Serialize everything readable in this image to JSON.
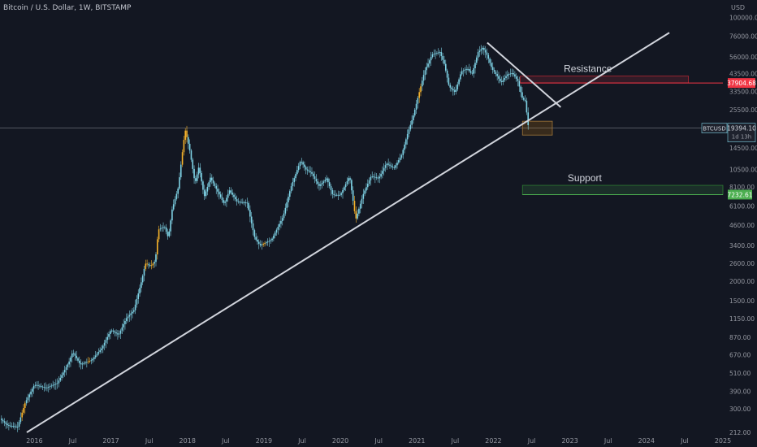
{
  "chart_data": {
    "type": "candlestick",
    "title": "Bitcoin / U.S. Dollar, 1W, BITSTAMP",
    "y_unit": "USD",
    "log_scale": true,
    "grid": false,
    "ylim": [
      212,
      130000
    ],
    "y_ticks": [
      "100000.00",
      "76000.00",
      "56000.00",
      "43500.00",
      "33500.00",
      "25500.00",
      "14500.00",
      "10500.00",
      "8100.00",
      "6100.00",
      "4600.00",
      "3400.00",
      "2600.00",
      "2000.00",
      "1500.00",
      "1150.00",
      "870.00",
      "670.00",
      "510.00",
      "390.00",
      "300.00",
      "212.00"
    ],
    "y_tick_values": [
      100000,
      76000,
      56000,
      43500,
      33500,
      25500,
      14500,
      10500,
      8100,
      6100,
      4600,
      3400,
      2600,
      2000,
      1500,
      1150,
      870,
      670,
      510,
      390,
      300,
      212
    ],
    "x_ticks": [
      "2016",
      "Jul",
      "2017",
      "Jul",
      "2018",
      "Jul",
      "2019",
      "Jul",
      "2020",
      "Jul",
      "2021",
      "Jul",
      "2022",
      "Jul",
      "2023",
      "Jul",
      "2024",
      "Jul",
      "2025"
    ],
    "x_tick_dates": [
      2016.0,
      2016.5,
      2017.0,
      2017.5,
      2018.0,
      2018.5,
      2019.0,
      2019.5,
      2020.0,
      2020.5,
      2021.0,
      2021.5,
      2022.0,
      2022.5,
      2023.0,
      2023.5,
      2024.0,
      2024.5,
      2025.0
    ],
    "xlim": [
      2015.55,
      2025.0
    ],
    "price_path": [
      [
        2015.55,
        260
      ],
      [
        2015.65,
        235
      ],
      [
        2015.78,
        230
      ],
      [
        2015.88,
        330
      ],
      [
        2016.0,
        430
      ],
      [
        2016.15,
        410
      ],
      [
        2016.3,
        440
      ],
      [
        2016.45,
        600
      ],
      [
        2016.5,
        700
      ],
      [
        2016.6,
        580
      ],
      [
        2016.75,
        620
      ],
      [
        2016.88,
        740
      ],
      [
        2017.0,
        970
      ],
      [
        2017.1,
        900
      ],
      [
        2017.2,
        1150
      ],
      [
        2017.3,
        1300
      ],
      [
        2017.4,
        2000
      ],
      [
        2017.45,
        2600
      ],
      [
        2017.52,
        2500
      ],
      [
        2017.58,
        2700
      ],
      [
        2017.62,
        4300
      ],
      [
        2017.7,
        4500
      ],
      [
        2017.75,
        3800
      ],
      [
        2017.8,
        5800
      ],
      [
        2017.88,
        8000
      ],
      [
        2017.93,
        13000
      ],
      [
        2017.97,
        19000
      ],
      [
        2018.03,
        14000
      ],
      [
        2018.1,
        8500
      ],
      [
        2018.15,
        11000
      ],
      [
        2018.22,
        7000
      ],
      [
        2018.3,
        9300
      ],
      [
        2018.4,
        7500
      ],
      [
        2018.48,
        6300
      ],
      [
        2018.55,
        7700
      ],
      [
        2018.65,
        6500
      ],
      [
        2018.78,
        6400
      ],
      [
        2018.88,
        3800
      ],
      [
        2018.95,
        3400
      ],
      [
        2019.1,
        3700
      ],
      [
        2019.25,
        5200
      ],
      [
        2019.35,
        8000
      ],
      [
        2019.48,
        12000
      ],
      [
        2019.55,
        10500
      ],
      [
        2019.62,
        10000
      ],
      [
        2019.72,
        8200
      ],
      [
        2019.82,
        9200
      ],
      [
        2019.9,
        7200
      ],
      [
        2020.0,
        7200
      ],
      [
        2020.12,
        9500
      ],
      [
        2020.2,
        5000
      ],
      [
        2020.3,
        7300
      ],
      [
        2020.4,
        9500
      ],
      [
        2020.5,
        9200
      ],
      [
        2020.6,
        11500
      ],
      [
        2020.7,
        10700
      ],
      [
        2020.8,
        13000
      ],
      [
        2020.88,
        18000
      ],
      [
        2020.95,
        23000
      ],
      [
        2021.03,
        33000
      ],
      [
        2021.1,
        45000
      ],
      [
        2021.2,
        58000
      ],
      [
        2021.3,
        60000
      ],
      [
        2021.36,
        50000
      ],
      [
        2021.42,
        36000
      ],
      [
        2021.5,
        33000
      ],
      [
        2021.58,
        45000
      ],
      [
        2021.66,
        47000
      ],
      [
        2021.72,
        43000
      ],
      [
        2021.8,
        60000
      ],
      [
        2021.86,
        64000
      ],
      [
        2021.92,
        57000
      ],
      [
        2021.98,
        47000
      ],
      [
        2022.05,
        42000
      ],
      [
        2022.1,
        38000
      ],
      [
        2022.18,
        43000
      ],
      [
        2022.25,
        44000
      ],
      [
        2022.32,
        39000
      ],
      [
        2022.38,
        30000
      ],
      [
        2022.42,
        29000
      ],
      [
        2022.45,
        20500
      ],
      [
        2022.47,
        19394
      ]
    ],
    "highlight_segments": [
      [
        2015.82,
        2015.88
      ],
      [
        2016.7,
        2016.74
      ],
      [
        2017.45,
        2017.48
      ],
      [
        2017.52,
        2017.55
      ],
      [
        2017.6,
        2017.63
      ],
      [
        2017.93,
        2018.0
      ],
      [
        2018.98,
        2019.0
      ],
      [
        2019.0,
        2019.03
      ],
      [
        2020.18,
        2020.22
      ],
      [
        2021.03,
        2021.05
      ]
    ],
    "trendlines": [
      {
        "from": [
          2015.9,
          212
        ],
        "to": [
          2024.3,
          80000
        ],
        "color": "#d1d4dc"
      },
      {
        "from": [
          2021.92,
          69000
        ],
        "to": [
          2022.88,
          26500
        ],
        "color": "#d1d4dc"
      }
    ],
    "resistance_zone": {
      "label": "Resistance",
      "x0": 2022.35,
      "x1": 2024.55,
      "y_low": 38000,
      "y_high": 42000,
      "level_label": "37904.68",
      "level": 37904.68
    },
    "support_zone": {
      "label": "Support",
      "x0": 2022.38,
      "x1": 2025.0,
      "y_low": 7232.61,
      "y_high": 8300,
      "level_label": "7232.61",
      "level": 7232.61
    },
    "current_box": {
      "x0": 2022.38,
      "x1": 2022.77,
      "y_low": 17500,
      "y_high": 21500
    },
    "current_price": {
      "symbol": "BTCUSD",
      "value": "19394.10",
      "countdown": "1d 13h",
      "level": 19394.1
    },
    "horizontal_line": 19394.1
  }
}
